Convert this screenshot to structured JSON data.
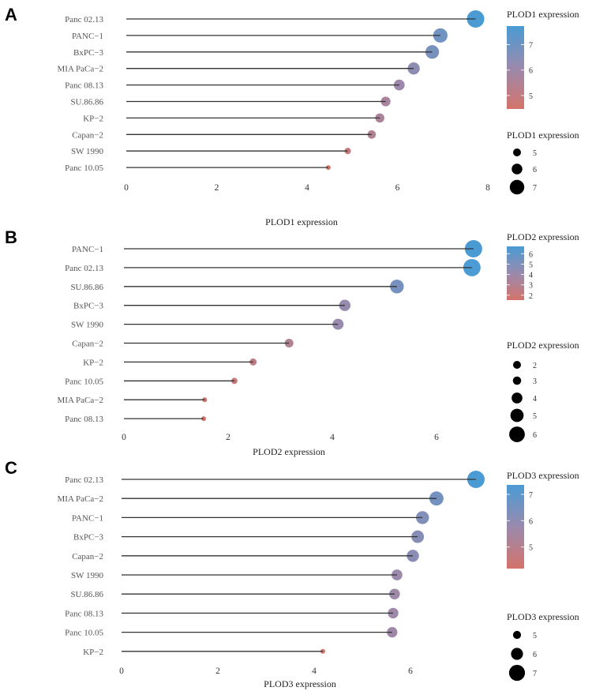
{
  "colors": {
    "low": "#d4736a",
    "mid": "#9a8aad",
    "high": "#4a9bd4",
    "stem": "#333333"
  },
  "chart_data": [
    {
      "type": "lollipop",
      "panel_label": "A",
      "xlabel": "PLOD1 expression",
      "xlim": [
        0,
        8
      ],
      "xticks": [
        0,
        2,
        4,
        6,
        8
      ],
      "categories": [
        "Panc 02.13",
        "PANC−1",
        "BxPC−3",
        "MIA PaCa−2",
        "Panc 08.13",
        "SU.86.86",
        "KP−2",
        "Capan−2",
        "SW 1990",
        "Panc 10.05"
      ],
      "values": [
        7.73,
        6.95,
        6.77,
        6.36,
        6.04,
        5.74,
        5.61,
        5.43,
        4.9,
        4.47
      ],
      "color_legend": {
        "title": "PLOD1 expression",
        "ticks": [
          5,
          6,
          7
        ]
      },
      "size_legend": {
        "title": "PLOD1 expression",
        "values": [
          5,
          6,
          7
        ]
      }
    },
    {
      "type": "lollipop",
      "panel_label": "B",
      "xlabel": "PLOD2 expression",
      "xlim": [
        0,
        7
      ],
      "xticks": [
        0,
        2,
        4,
        6
      ],
      "categories": [
        "PANC−1",
        "Panc 02.13",
        "SU.86.86",
        "BxPC−3",
        "SW 1990",
        "Capan−2",
        "KP−2",
        "Panc 10.05",
        "MIA PaCa−2",
        "Panc 08.13"
      ],
      "values": [
        6.71,
        6.68,
        5.24,
        4.24,
        4.11,
        3.17,
        2.48,
        2.12,
        1.55,
        1.53
      ],
      "color_legend": {
        "title": "PLOD2 expression",
        "ticks": [
          2,
          3,
          4,
          5,
          6
        ]
      },
      "size_legend": {
        "title": "PLOD2 expression",
        "values": [
          2,
          3,
          4,
          5,
          6
        ]
      }
    },
    {
      "type": "lollipop",
      "panel_label": "C",
      "xlabel": "PLOD3 expression",
      "xlim": [
        0,
        7.5
      ],
      "xticks": [
        0,
        2,
        4,
        6
      ],
      "categories": [
        "Panc 02.13",
        "MIA PaCa−2",
        "PANC−1",
        "BxPC−3",
        "Capan−2",
        "SW 1990",
        "SU.86.86",
        "Panc 08.13",
        "Panc 10.05",
        "KP−2"
      ],
      "values": [
        7.36,
        6.54,
        6.25,
        6.15,
        6.05,
        5.72,
        5.67,
        5.64,
        5.62,
        4.18
      ],
      "color_legend": {
        "title": "PLOD3 expression",
        "ticks": [
          5,
          6,
          7
        ]
      },
      "size_legend": {
        "title": "PLOD3 expression",
        "values": [
          5,
          6,
          7
        ]
      }
    }
  ]
}
